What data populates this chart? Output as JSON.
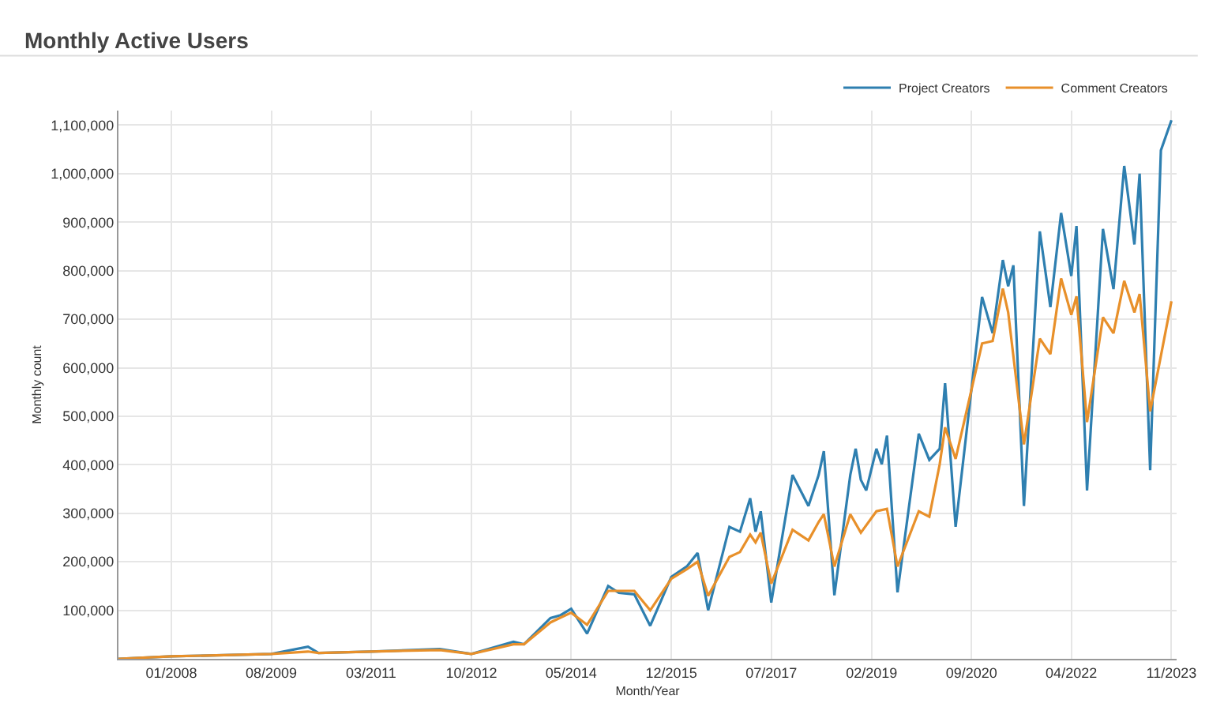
{
  "chart_data": {
    "type": "line",
    "title": "Monthly Active Users",
    "xlabel": "Month/Year",
    "ylabel": "Monthly count",
    "xlim": [
      "2007-03",
      "2023-12"
    ],
    "xticks": [
      {
        "value": "2008-01",
        "label": "01/2008"
      },
      {
        "value": "2009-08",
        "label": "08/2009"
      },
      {
        "value": "2011-03",
        "label": "03/2011"
      },
      {
        "value": "2012-10",
        "label": "10/2012"
      },
      {
        "value": "2014-05",
        "label": "05/2014"
      },
      {
        "value": "2015-12",
        "label": "12/2015"
      },
      {
        "value": "2017-07",
        "label": "07/2017"
      },
      {
        "value": "2019-02",
        "label": "02/2019"
      },
      {
        "value": "2020-09",
        "label": "09/2020"
      },
      {
        "value": "2022-04",
        "label": "04/2022"
      },
      {
        "value": "2023-11",
        "label": "11/2023"
      }
    ],
    "ylim": [
      0,
      1130000
    ],
    "yticks": [
      {
        "value": 100000,
        "label": "100,000"
      },
      {
        "value": 200000,
        "label": "200,000"
      },
      {
        "value": 300000,
        "label": "300,000"
      },
      {
        "value": 400000,
        "label": "400,000"
      },
      {
        "value": 500000,
        "label": "500,000"
      },
      {
        "value": 600000,
        "label": "600,000"
      },
      {
        "value": 700000,
        "label": "700,000"
      },
      {
        "value": 800000,
        "label": "800,000"
      },
      {
        "value": 900000,
        "label": "900,000"
      },
      {
        "value": 1000000,
        "label": "1,000,000"
      },
      {
        "value": 1100000,
        "label": "1,100,000"
      }
    ],
    "grid": true,
    "legend": "top right",
    "marker": "none",
    "line_style": "solid",
    "series": [
      {
        "name": "Project Creators",
        "color": "#2e7fb0",
        "x": [
          "2007-03",
          "2008-01",
          "2009-08",
          "2010-03",
          "2010-05",
          "2011-03",
          "2012-04",
          "2012-10",
          "2013-06",
          "2013-08",
          "2014-01",
          "2014-03",
          "2014-05",
          "2014-08",
          "2014-12",
          "2015-02",
          "2015-05",
          "2015-08",
          "2015-12",
          "2016-03",
          "2016-05",
          "2016-07",
          "2016-11",
          "2017-01",
          "2017-03",
          "2017-04",
          "2017-05",
          "2017-07",
          "2017-11",
          "2018-02",
          "2018-04",
          "2018-05",
          "2018-07",
          "2018-10",
          "2018-11",
          "2018-12",
          "2019-01",
          "2019-03",
          "2019-04",
          "2019-05",
          "2019-07",
          "2019-11",
          "2020-01",
          "2020-03",
          "2020-04",
          "2020-06",
          "2020-11",
          "2021-01",
          "2021-03",
          "2021-04",
          "2021-05",
          "2021-07",
          "2021-10",
          "2021-12",
          "2022-02",
          "2022-04",
          "2022-05",
          "2022-07",
          "2022-10",
          "2022-12",
          "2023-02",
          "2023-04",
          "2023-05",
          "2023-07",
          "2023-09",
          "2023-11"
        ],
        "values": [
          0,
          5000,
          10000,
          25000,
          12000,
          15000,
          20000,
          10000,
          35000,
          30000,
          84000,
          90000,
          103000,
          52000,
          150000,
          136000,
          133000,
          68000,
          169000,
          191000,
          218000,
          100000,
          272000,
          262000,
          331000,
          262000,
          304000,
          116000,
          379000,
          315000,
          379000,
          428000,
          131000,
          379000,
          433000,
          369000,
          347000,
          433000,
          401000,
          460000,
          137000,
          464000,
          410000,
          433000,
          568000,
          272000,
          746000,
          671000,
          822000,
          768000,
          811000,
          315000,
          881000,
          725000,
          919000,
          789000,
          892000,
          347000,
          886000,
          762000,
          1016000,
          854000,
          1000000,
          389000,
          1048000,
          1110000
        ]
      },
      {
        "name": "Comment Creators",
        "color": "#e8902a",
        "x": [
          "2007-03",
          "2008-01",
          "2009-08",
          "2010-03",
          "2010-05",
          "2011-03",
          "2012-04",
          "2012-10",
          "2013-06",
          "2013-08",
          "2014-01",
          "2014-03",
          "2014-05",
          "2014-08",
          "2014-12",
          "2015-02",
          "2015-05",
          "2015-08",
          "2015-12",
          "2016-03",
          "2016-05",
          "2016-07",
          "2016-11",
          "2017-01",
          "2017-03",
          "2017-04",
          "2017-05",
          "2017-07",
          "2017-11",
          "2018-02",
          "2018-04",
          "2018-05",
          "2018-07",
          "2018-10",
          "2018-12",
          "2019-03",
          "2019-05",
          "2019-07",
          "2019-11",
          "2020-01",
          "2020-03",
          "2020-04",
          "2020-06",
          "2020-11",
          "2021-01",
          "2021-03",
          "2021-04",
          "2021-07",
          "2021-10",
          "2021-12",
          "2022-02",
          "2022-04",
          "2022-05",
          "2022-07",
          "2022-10",
          "2022-12",
          "2023-02",
          "2023-04",
          "2023-05",
          "2023-07",
          "2023-11"
        ],
        "values": [
          0,
          5000,
          10000,
          15000,
          12000,
          15000,
          18000,
          10000,
          30000,
          30000,
          75000,
          85000,
          95000,
          70000,
          140000,
          140000,
          140000,
          100000,
          165000,
          185000,
          200000,
          130000,
          210000,
          220000,
          256000,
          240000,
          260000,
          155000,
          266000,
          244000,
          282000,
          298000,
          190000,
          298000,
          260000,
          304000,
          309000,
          190000,
          304000,
          293000,
          401000,
          477000,
          412000,
          650000,
          655000,
          763000,
          714000,
          442000,
          660000,
          628000,
          784000,
          709000,
          747000,
          488000,
          704000,
          671000,
          779000,
          714000,
          752000,
          510000,
          737000
        ]
      }
    ]
  }
}
